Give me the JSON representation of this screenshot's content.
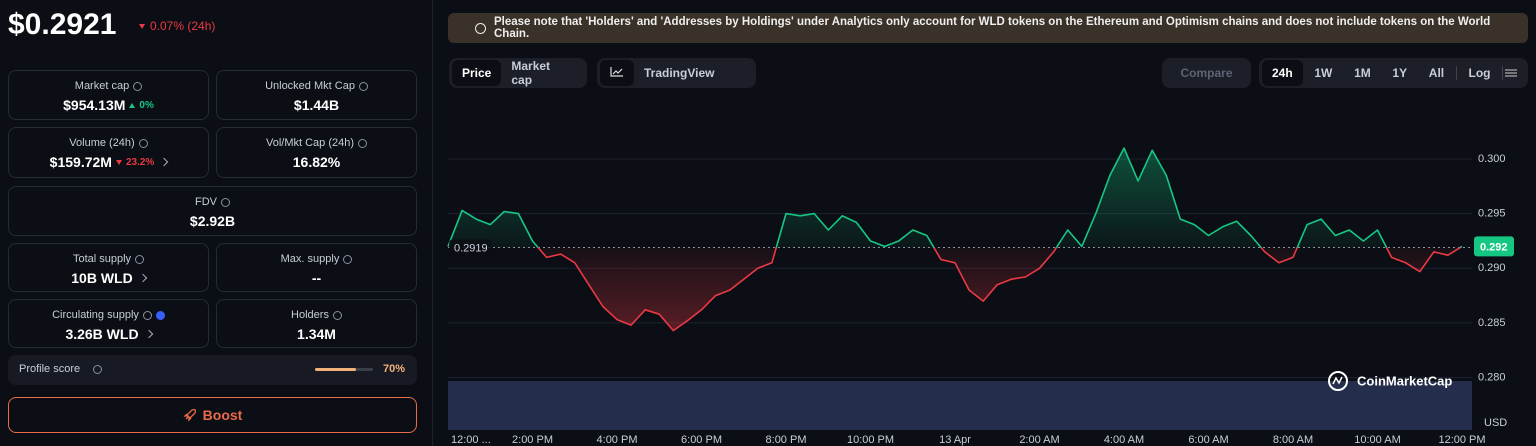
{
  "header": {
    "price": "$0.2921",
    "change": "0.07% (24h)"
  },
  "stats": [
    {
      "label": "Market cap",
      "value": "$954.13M",
      "change": "0%"
    },
    {
      "label": "Unlocked Mkt Cap",
      "value": "$1.44B"
    },
    {
      "label": "Volume (24h)",
      "value": "$159.72M",
      "change": "23.2%"
    },
    {
      "label": "Vol/Mkt Cap (24h)",
      "value": "16.82%"
    },
    {
      "label": "FDV",
      "value": "$2.92B"
    },
    {
      "label": "Total supply",
      "value": "10B WLD"
    },
    {
      "label": "Max. supply",
      "value": "--"
    },
    {
      "label": "Circulating supply",
      "value": "3.26B WLD"
    },
    {
      "label": "Holders",
      "value": "1.34M"
    }
  ],
  "profile_score": {
    "label": "Profile score",
    "value": 70,
    "value_label": "70%"
  },
  "boost": "Boost",
  "notice": "Please note that 'Holders' and 'Addresses by Holdings' under Analytics only account for WLD tokens on the Ethereum and Optimism chains and does not include tokens on the World Chain.",
  "toolbar": {
    "tabs": [
      "Price",
      "Market cap"
    ],
    "tradingview": "TradingView",
    "compare": "Compare",
    "ranges": [
      "24h",
      "1W",
      "1M",
      "1Y",
      "All"
    ],
    "log": "Log"
  },
  "chart": {
    "type": "line",
    "categories": [
      "12:00 ...",
      null,
      null,
      null,
      null,
      null,
      "2:00 PM",
      null,
      null,
      null,
      null,
      null,
      "4:00 PM",
      null,
      null,
      null,
      null,
      null,
      "6:00 PM",
      null,
      null,
      null,
      null,
      null,
      "8:00 PM",
      null,
      null,
      null,
      null,
      null,
      "10:00 PM",
      null,
      null,
      null,
      null,
      null,
      "13 Apr",
      null,
      null,
      null,
      null,
      null,
      "2:00 AM",
      null,
      null,
      null,
      null,
      null,
      "4:00 AM",
      null,
      null,
      null,
      null,
      null,
      "6:00 AM",
      null,
      null,
      null,
      null,
      null,
      "8:00 AM",
      null,
      null,
      null,
      null,
      null,
      "10:00 AM",
      null,
      null,
      null,
      null,
      null,
      "12:00 PM"
    ],
    "values": [
      0.292,
      0.2953,
      0.2945,
      0.294,
      0.2952,
      0.295,
      0.2925,
      0.291,
      0.2913,
      0.2905,
      0.2885,
      0.2865,
      0.2853,
      0.2848,
      0.2862,
      0.2858,
      0.2843,
      0.2852,
      0.2862,
      0.2875,
      0.288,
      0.289,
      0.29,
      0.2905,
      0.295,
      0.2948,
      0.295,
      0.2935,
      0.2948,
      0.2942,
      0.2925,
      0.292,
      0.2925,
      0.2935,
      0.293,
      0.2908,
      0.2905,
      0.288,
      0.287,
      0.2885,
      0.289,
      0.2892,
      0.29,
      0.2915,
      0.2935,
      0.292,
      0.295,
      0.2985,
      0.301,
      0.298,
      0.3008,
      0.2985,
      0.2945,
      0.294,
      0.293,
      0.2938,
      0.2943,
      0.293,
      0.2915,
      0.2905,
      0.291,
      0.294,
      0.2945,
      0.293,
      0.2935,
      0.2925,
      0.2935,
      0.291,
      0.2905,
      0.2897,
      0.2915,
      0.2912,
      0.292
    ],
    "baseline": 0.2919,
    "last_price": 0.292,
    "ylim": [
      0.2752,
      0.3054
    ],
    "yticks": [
      {
        "value": 0.3,
        "label": "0.300"
      },
      0.295,
      {
        "value": 0.29,
        "label": "0.290"
      },
      0.285,
      {
        "value": 0.28,
        "label": "0.280"
      }
    ],
    "unit": "USD",
    "watermark": "CoinMarketCap",
    "up_color": "#16c784",
    "down_color": "#ea3943",
    "grid": true
  }
}
